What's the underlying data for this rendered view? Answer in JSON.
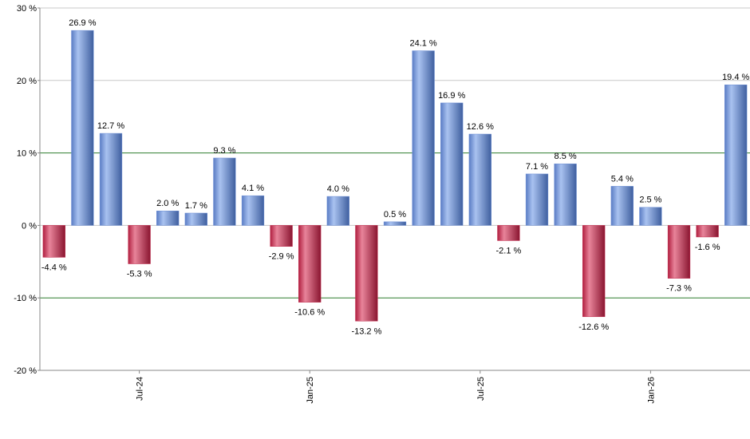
{
  "chart_data": {
    "type": "bar",
    "categories": [
      null,
      null,
      null,
      "Jul-24",
      null,
      null,
      null,
      null,
      null,
      "Jan-25",
      null,
      null,
      null,
      null,
      null,
      "Jul-25",
      null,
      null,
      null,
      null,
      null,
      "Jan-26",
      null,
      null,
      null
    ],
    "values": [
      -4.4,
      26.9,
      12.7,
      -5.3,
      2.0,
      1.7,
      9.3,
      4.1,
      -2.9,
      -10.6,
      4.0,
      -13.2,
      0.5,
      24.1,
      16.9,
      12.6,
      -2.1,
      7.1,
      8.5,
      -12.6,
      5.4,
      2.5,
      -7.3,
      -1.6,
      19.4
    ],
    "value_labels": [
      "-4.4 %",
      "26.9 %",
      "12.7 %",
      "-5.3 %",
      "2.0 %",
      "1.7 %",
      "9.3 %",
      "4.1 %",
      "-2.9 %",
      "-10.6 %",
      "4.0 %",
      "-13.2 %",
      "0.5 %",
      "24.1 %",
      "16.9 %",
      "12.6 %",
      "-2.1 %",
      "7.1 %",
      "8.5 %",
      "-12.6 %",
      "5.4 %",
      "2.5 %",
      "-7.3 %",
      "-1.6 %",
      "19.4 %"
    ],
    "positive_color": "#6d8fd6",
    "negative_color": "#c22a4c",
    "ylim": [
      -20,
      30
    ],
    "yticks": [
      {
        "value": -20,
        "label": "-20 %"
      },
      {
        "value": -10,
        "label": "-10 %"
      },
      {
        "value": 0,
        "label": "0 %"
      },
      {
        "value": 10,
        "label": "10 %"
      },
      {
        "value": 20,
        "label": "20 %"
      },
      {
        "value": 30,
        "label": "30 %"
      }
    ],
    "grid": true,
    "grid_color": "#c8c8c8",
    "highlight_ticks": [
      -10,
      10
    ],
    "highlight_color": "#2e7d2e"
  }
}
